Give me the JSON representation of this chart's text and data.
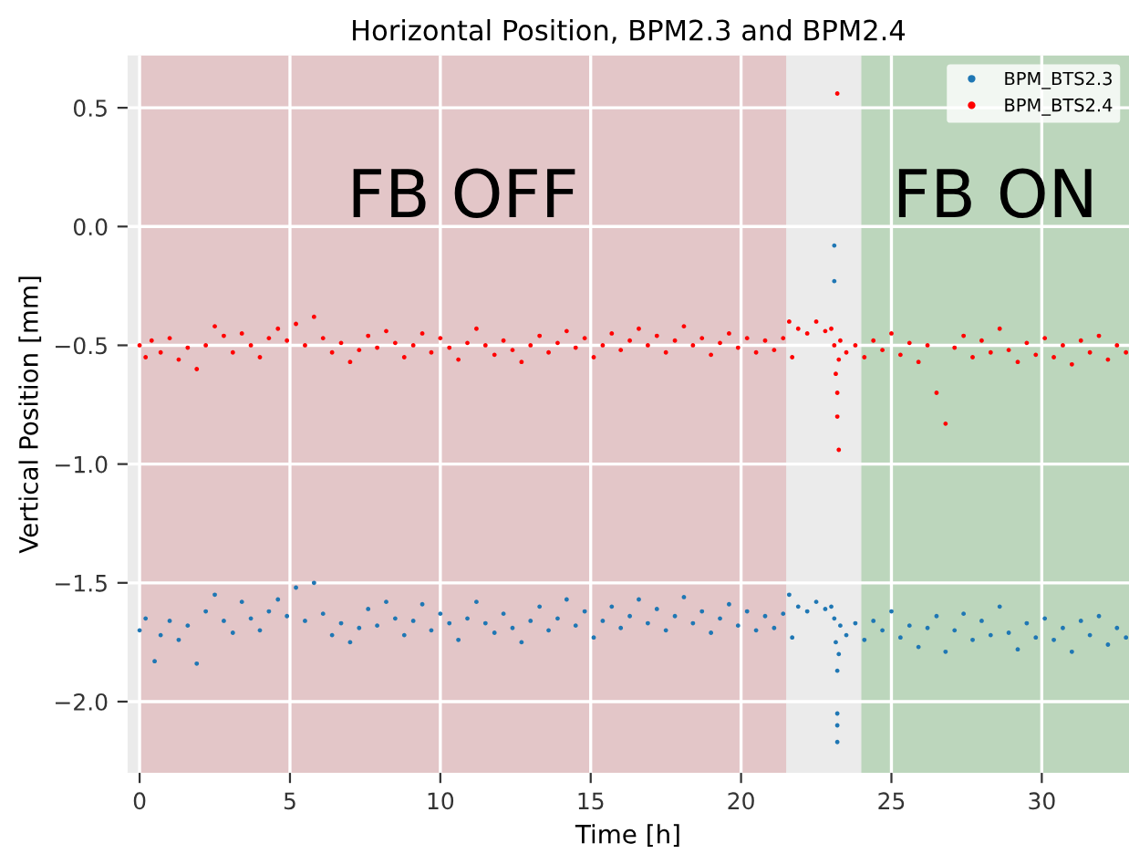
{
  "chart_data": {
    "type": "scatter",
    "title": "Horizontal Position, BPM2.3 and BPM2.4",
    "xlabel": "Time [h]",
    "ylabel": "Vertical Position [mm]",
    "xlim": [
      -0.4,
      32.9
    ],
    "ylim": [
      -2.3,
      0.72
    ],
    "xticks": [
      0,
      5,
      10,
      15,
      20,
      25,
      30
    ],
    "yticks": [
      {
        "value": -2.0,
        "label": "−2.0"
      },
      {
        "value": -1.5,
        "label": "−1.5"
      },
      {
        "value": -1.0,
        "label": "−1.0"
      },
      {
        "value": -0.5,
        "label": "−0.5"
      },
      {
        "value": 0.0,
        "label": "0.0"
      },
      {
        "value": 0.5,
        "label": "0.5"
      }
    ],
    "grid": true,
    "legend": "top right",
    "marker": "circle",
    "bands": [
      {
        "axis": "x",
        "from": 0,
        "to": 21.5,
        "label": "FB OFF",
        "color": "#e3c6c8"
      },
      {
        "axis": "x",
        "from": 24,
        "to": 32.9,
        "label": "FB ON",
        "color": "#bcd6bc"
      }
    ],
    "series": [
      {
        "name": "BPM_BTS2.3",
        "color": "#1f77b4",
        "x": [
          0.0,
          0.2,
          0.5,
          0.7,
          1.0,
          1.3,
          1.6,
          1.9,
          2.2,
          2.5,
          2.8,
          3.1,
          3.4,
          3.7,
          4.0,
          4.3,
          4.6,
          4.9,
          5.2,
          5.5,
          5.8,
          6.1,
          6.4,
          6.7,
          7.0,
          7.3,
          7.6,
          7.9,
          8.2,
          8.5,
          8.8,
          9.1,
          9.4,
          9.7,
          10.0,
          10.3,
          10.6,
          10.9,
          11.2,
          11.5,
          11.8,
          12.1,
          12.4,
          12.7,
          13.0,
          13.3,
          13.6,
          13.9,
          14.2,
          14.5,
          14.8,
          15.1,
          15.4,
          15.7,
          16.0,
          16.3,
          16.6,
          16.9,
          17.2,
          17.5,
          17.8,
          18.1,
          18.4,
          18.7,
          19.0,
          19.3,
          19.6,
          19.9,
          20.2,
          20.5,
          20.8,
          21.1,
          21.4,
          21.6,
          21.7,
          21.9,
          22.2,
          22.5,
          22.8,
          23.0,
          23.1,
          23.1,
          23.1,
          23.15,
          23.2,
          23.2,
          23.2,
          23.25,
          23.2,
          23.3,
          23.5,
          23.8,
          24.1,
          24.4,
          24.7,
          25.0,
          25.3,
          25.6,
          25.9,
          26.2,
          26.5,
          26.8,
          27.1,
          27.4,
          27.7,
          28.0,
          28.3,
          28.6,
          28.9,
          29.2,
          29.5,
          29.8,
          30.1,
          30.4,
          30.7,
          31.0,
          31.3,
          31.6,
          31.9,
          32.2,
          32.5,
          32.8
        ],
        "values": [
          -1.7,
          -1.65,
          -1.83,
          -1.72,
          -1.66,
          -1.74,
          -1.68,
          -1.84,
          -1.62,
          -1.55,
          -1.66,
          -1.71,
          -1.58,
          -1.65,
          -1.7,
          -1.62,
          -1.57,
          -1.64,
          -1.52,
          -1.66,
          -1.5,
          -1.63,
          -1.72,
          -1.67,
          -1.75,
          -1.69,
          -1.61,
          -1.68,
          -1.58,
          -1.65,
          -1.72,
          -1.66,
          -1.59,
          -1.7,
          -1.63,
          -1.67,
          -1.74,
          -1.65,
          -1.58,
          -1.67,
          -1.71,
          -1.63,
          -1.69,
          -1.75,
          -1.66,
          -1.6,
          -1.7,
          -1.65,
          -1.57,
          -1.68,
          -1.62,
          -1.73,
          -1.66,
          -1.6,
          -1.69,
          -1.64,
          -1.57,
          -1.67,
          -1.61,
          -1.7,
          -1.64,
          -1.56,
          -1.67,
          -1.62,
          -1.71,
          -1.65,
          -1.59,
          -1.68,
          -1.62,
          -1.7,
          -1.64,
          -1.69,
          -1.63,
          -1.55,
          -1.73,
          -1.6,
          -1.62,
          -1.58,
          -1.61,
          -1.6,
          -0.08,
          -0.23,
          -1.65,
          -1.75,
          -1.87,
          -2.05,
          -2.1,
          -1.8,
          -2.17,
          -1.68,
          -1.72,
          -1.67,
          -1.74,
          -1.66,
          -1.7,
          -1.62,
          -1.73,
          -1.68,
          -1.77,
          -1.69,
          -1.64,
          -1.79,
          -1.7,
          -1.63,
          -1.74,
          -1.66,
          -1.72,
          -1.6,
          -1.71,
          -1.78,
          -1.67,
          -1.73,
          -1.65,
          -1.74,
          -1.69,
          -1.79,
          -1.66,
          -1.72,
          -1.64,
          -1.76,
          -1.69,
          -1.73
        ]
      },
      {
        "name": "BPM_BTS2.4",
        "color": "#ff0000",
        "x": [
          0.0,
          0.2,
          0.4,
          0.7,
          1.0,
          1.3,
          1.6,
          1.9,
          2.2,
          2.5,
          2.8,
          3.1,
          3.4,
          3.7,
          4.0,
          4.3,
          4.6,
          4.9,
          5.2,
          5.5,
          5.8,
          6.1,
          6.4,
          6.7,
          7.0,
          7.3,
          7.6,
          7.9,
          8.2,
          8.5,
          8.8,
          9.1,
          9.4,
          9.7,
          10.0,
          10.3,
          10.6,
          10.9,
          11.2,
          11.5,
          11.8,
          12.1,
          12.4,
          12.7,
          13.0,
          13.3,
          13.6,
          13.9,
          14.2,
          14.5,
          14.8,
          15.1,
          15.4,
          15.7,
          16.0,
          16.3,
          16.6,
          16.9,
          17.2,
          17.5,
          17.8,
          18.1,
          18.4,
          18.7,
          19.0,
          19.3,
          19.6,
          19.9,
          20.2,
          20.5,
          20.8,
          21.1,
          21.4,
          21.6,
          21.7,
          21.9,
          22.2,
          22.5,
          22.8,
          23.0,
          23.1,
          23.15,
          23.2,
          23.25,
          23.2,
          23.2,
          23.25,
          23.3,
          23.5,
          23.8,
          24.1,
          24.4,
          24.7,
          25.0,
          25.3,
          25.6,
          25.9,
          26.2,
          26.5,
          26.8,
          27.1,
          27.4,
          27.7,
          28.0,
          28.3,
          28.6,
          28.9,
          29.2,
          29.5,
          29.8,
          30.1,
          30.4,
          30.7,
          31.0,
          31.3,
          31.6,
          31.9,
          32.2,
          32.5,
          32.8
        ],
        "values": [
          -0.5,
          -0.55,
          -0.48,
          -0.53,
          -0.47,
          -0.56,
          -0.51,
          -0.6,
          -0.5,
          -0.42,
          -0.46,
          -0.53,
          -0.45,
          -0.5,
          -0.55,
          -0.47,
          -0.43,
          -0.48,
          -0.41,
          -0.5,
          -0.38,
          -0.47,
          -0.53,
          -0.49,
          -0.57,
          -0.52,
          -0.46,
          -0.51,
          -0.44,
          -0.49,
          -0.55,
          -0.5,
          -0.45,
          -0.53,
          -0.47,
          -0.51,
          -0.56,
          -0.49,
          -0.43,
          -0.5,
          -0.54,
          -0.48,
          -0.52,
          -0.57,
          -0.5,
          -0.46,
          -0.53,
          -0.49,
          -0.44,
          -0.51,
          -0.47,
          -0.55,
          -0.5,
          -0.45,
          -0.52,
          -0.48,
          -0.43,
          -0.5,
          -0.46,
          -0.53,
          -0.48,
          -0.42,
          -0.5,
          -0.47,
          -0.54,
          -0.49,
          -0.45,
          -0.51,
          -0.47,
          -0.53,
          -0.48,
          -0.52,
          -0.47,
          -0.4,
          -0.55,
          -0.43,
          -0.45,
          -0.4,
          -0.44,
          -0.43,
          -0.5,
          -0.62,
          -0.7,
          -0.56,
          0.56,
          -0.8,
          -0.94,
          -0.48,
          -0.53,
          -0.5,
          -0.55,
          -0.48,
          -0.52,
          -0.45,
          -0.54,
          -0.49,
          -0.57,
          -0.5,
          -0.7,
          -0.83,
          -0.51,
          -0.46,
          -0.55,
          -0.48,
          -0.53,
          -0.43,
          -0.52,
          -0.57,
          -0.49,
          -0.54,
          -0.47,
          -0.55,
          -0.5,
          -0.58,
          -0.48,
          -0.53,
          -0.46,
          -0.56,
          -0.5,
          -0.53
        ]
      }
    ]
  }
}
